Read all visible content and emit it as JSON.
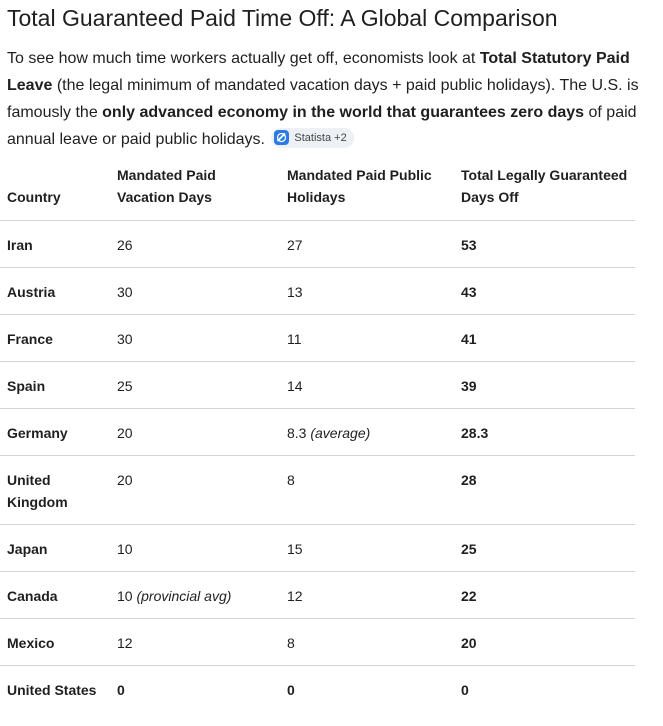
{
  "heading": "Total Guaranteed Paid Time Off: A Global Comparison",
  "intro": {
    "part1": "To see how much time workers actually get off, economists look at ",
    "bold1": "Total Statutory Paid Leave",
    "part2": " (the legal minimum of mandated vacation days + paid public holidays). The U.S. is famously the ",
    "bold2": "only advanced economy in the world that guarantees zero days",
    "part3": " of paid annual leave or paid public holidays.",
    "source_chip": {
      "label": "Statista +2",
      "icon": "statista-icon",
      "icon_color": "#2a7be4"
    }
  },
  "table": {
    "headers": {
      "country": "Country",
      "vacation": "Mandated Paid Vacation Days",
      "holidays": "Mandated Paid Public Holidays",
      "total": "Total Legally Guaranteed Days Off"
    },
    "rows": [
      {
        "country": "Iran",
        "vacation": "26",
        "vacation_note": "",
        "holidays": "27",
        "holidays_note": "",
        "total": "53"
      },
      {
        "country": "Austria",
        "vacation": "30",
        "vacation_note": "",
        "holidays": "13",
        "holidays_note": "",
        "total": "43"
      },
      {
        "country": "France",
        "vacation": "30",
        "vacation_note": "",
        "holidays": "11",
        "holidays_note": "",
        "total": "41"
      },
      {
        "country": "Spain",
        "vacation": "25",
        "vacation_note": "",
        "holidays": "14",
        "holidays_note": "",
        "total": "39"
      },
      {
        "country": "Germany",
        "vacation": "20",
        "vacation_note": "",
        "holidays": "8.3",
        "holidays_note": "(average)",
        "total": "28.3"
      },
      {
        "country": "United Kingdom",
        "vacation": "20",
        "vacation_note": "",
        "holidays": "8",
        "holidays_note": "",
        "total": "28"
      },
      {
        "country": "Japan",
        "vacation": "10",
        "vacation_note": "",
        "holidays": "15",
        "holidays_note": "",
        "total": "25"
      },
      {
        "country": "Canada",
        "vacation": "10",
        "vacation_note": "(provincial avg)",
        "holidays": "12",
        "holidays_note": "",
        "total": "22"
      },
      {
        "country": "Mexico",
        "vacation": "12",
        "vacation_note": "",
        "holidays": "8",
        "holidays_note": "",
        "total": "20"
      },
      {
        "country": "United States",
        "vacation": "0",
        "vacation_note": "",
        "holidays": "0",
        "holidays_note": "",
        "total": "0"
      }
    ]
  }
}
